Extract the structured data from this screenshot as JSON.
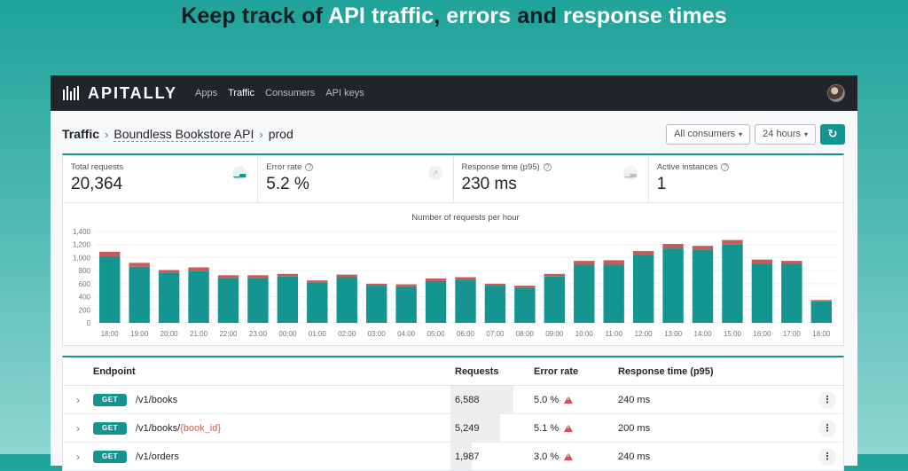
{
  "hero": {
    "part1": "Keep track of ",
    "part2": "API traffic",
    "part3": ", ",
    "part4": "errors",
    "part5": " and ",
    "part6": "response times"
  },
  "navbar": {
    "brand": "APITALLY",
    "links": [
      "Apps",
      "Traffic",
      "Consumers",
      "API keys"
    ],
    "active": "Traffic"
  },
  "breadcrumb": {
    "root": "Traffic",
    "api": "Boundless Bookstore API",
    "env": "prod"
  },
  "filters": {
    "consumers": "All consumers",
    "period": "24 hours"
  },
  "metrics": [
    {
      "label": "Total requests",
      "value": "20,364",
      "icon": "bar-chart-icon"
    },
    {
      "label": "Error rate",
      "value": "5.2 %",
      "icon": "line-chart-icon"
    },
    {
      "label": "Response time (p95)",
      "value": "230 ms",
      "icon": "bar-chart-icon"
    },
    {
      "label": "Active instances",
      "value": "1"
    }
  ],
  "chart_data": {
    "type": "bar",
    "stacked": true,
    "title": "Number of requests per hour",
    "categories": [
      "18:00",
      "19:00",
      "20:00",
      "21:00",
      "22:00",
      "23:00",
      "00:00",
      "01:00",
      "02:00",
      "03:00",
      "04:00",
      "05:00",
      "06:00",
      "07:00",
      "08:00",
      "09:00",
      "10:00",
      "11:00",
      "12:00",
      "13:00",
      "14:00",
      "15:00",
      "16:00",
      "17:00",
      "18:00"
    ],
    "series": [
      {
        "values": [
          1020,
          860,
          770,
          790,
          690,
          690,
          710,
          620,
          700,
          570,
          560,
          640,
          660,
          570,
          540,
          710,
          890,
          890,
          1040,
          1140,
          1120,
          1200,
          910,
          910,
          330
        ],
        "color": "#149592"
      },
      {
        "values": [
          70,
          60,
          40,
          60,
          40,
          40,
          40,
          30,
          40,
          30,
          30,
          40,
          40,
          30,
          30,
          40,
          60,
          70,
          60,
          70,
          60,
          70,
          60,
          40,
          20
        ],
        "color": "#c45c5c"
      }
    ],
    "ylim": [
      0,
      1400
    ],
    "yticks": [
      "0",
      "200",
      "400",
      "600",
      "800",
      "1,000",
      "1,200",
      "1,400"
    ],
    "grid": true
  },
  "table": {
    "headers": {
      "endpoint": "Endpoint",
      "requests": "Requests",
      "error_rate": "Error rate",
      "response_time": "Response time (p95)"
    },
    "rows": [
      {
        "method": "GET",
        "path": "/v1/books",
        "param": "",
        "requests": "6,588",
        "requests_share": 0.75,
        "error_rate": "5.0 %",
        "response_time": "240 ms"
      },
      {
        "method": "GET",
        "path": "/v1/books/",
        "param": "{book_id}",
        "requests": "5,249",
        "requests_share": 0.6,
        "error_rate": "5.1 %",
        "response_time": "200 ms"
      },
      {
        "method": "GET",
        "path": "/v1/orders",
        "param": "",
        "requests": "1,987",
        "requests_share": 0.25,
        "error_rate": "3.0 %",
        "response_time": "240 ms"
      }
    ]
  }
}
